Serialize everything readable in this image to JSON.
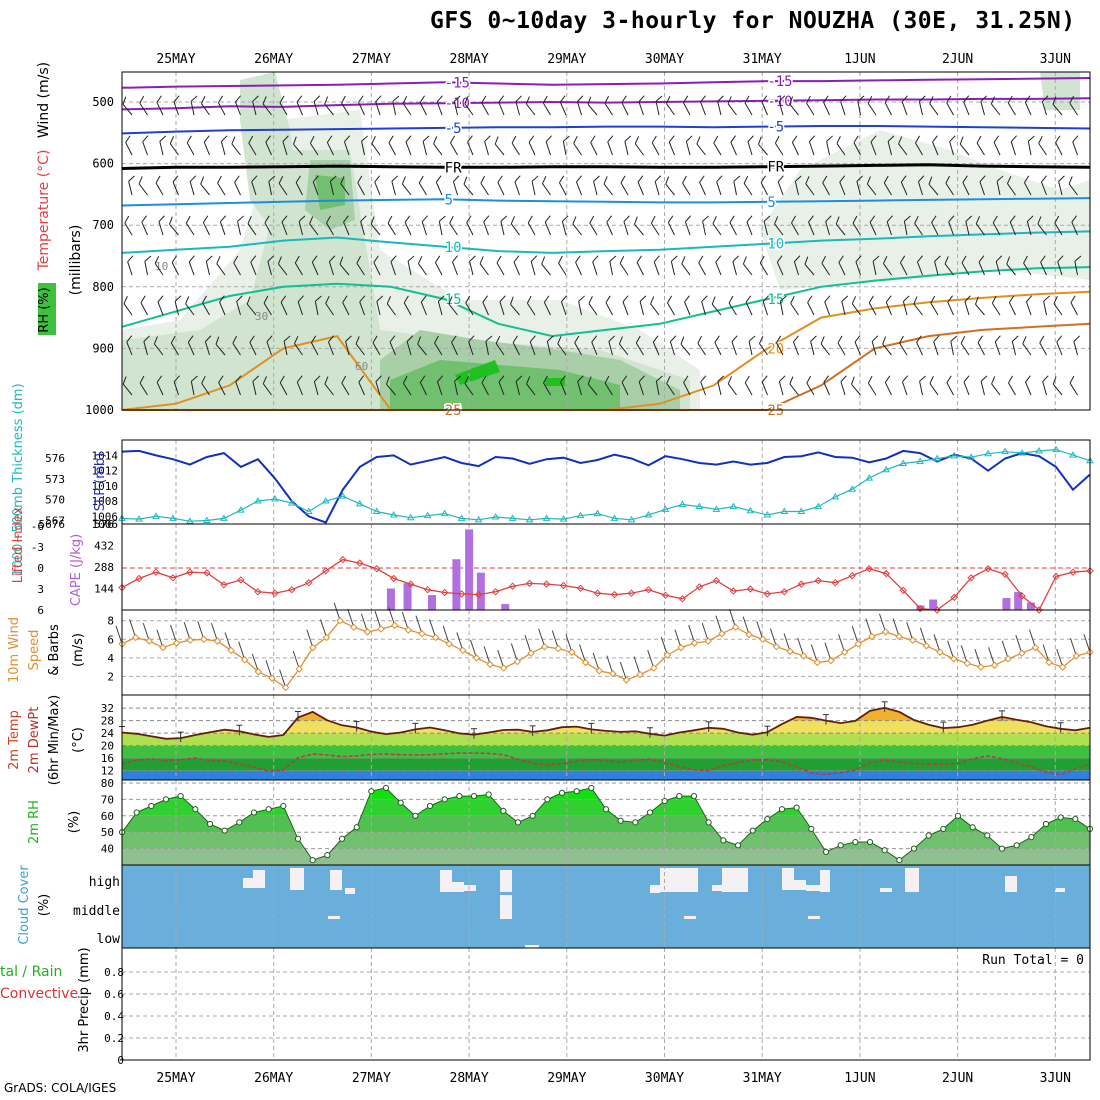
{
  "title": "GFS 0~10day 3-hourly for NOUZHA (30E, 31.25N)",
  "footer": "GrADS: COLA/IGES",
  "dates": [
    "25MAY",
    "26MAY",
    "27MAY",
    "28MAY",
    "29MAY",
    "30MAY",
    "31MAY",
    "1JUN",
    "2JUN",
    "3JUN"
  ],
  "chart_data": [
    {
      "type": "heatmap",
      "panel": "upper-air",
      "ylabel_parts": [
        "RH (%)",
        "Temperature (°C)",
        "Wind (m/s)",
        "(millibars)"
      ],
      "yticks": [
        500,
        600,
        700,
        800,
        900,
        1000
      ],
      "ylim": [
        1000,
        450
      ],
      "ylabel_units": "(millibars)",
      "temperature_contours": [
        {
          "label": "-15",
          "p": [
            477,
            475,
            474,
            473,
            472,
            470,
            468,
            470,
            472,
            471,
            470,
            468,
            466,
            466,
            465,
            464,
            463,
            462,
            461
          ],
          "color": "#8a1fb8"
        },
        {
          "label": "-10",
          "p": [
            512,
            510,
            507,
            508,
            505,
            503,
            502,
            501,
            500,
            501,
            500,
            499,
            498,
            497,
            496,
            496,
            495,
            495,
            494
          ],
          "color": "#8a1fb8"
        },
        {
          "label": "-5",
          "p": [
            551,
            548,
            546,
            545,
            544,
            543,
            542,
            541,
            541,
            540,
            540,
            541,
            540,
            539,
            539,
            540,
            541,
            542,
            543
          ],
          "color": "#2040d0"
        },
        {
          "label": "FR",
          "p": [
            608,
            606,
            606,
            605,
            604,
            605,
            606,
            606,
            605,
            605,
            606,
            606,
            605,
            604,
            603,
            602,
            604,
            605,
            606
          ],
          "color": "#000000"
        },
        {
          "label": "5",
          "p": [
            668,
            666,
            664,
            662,
            660,
            659,
            658,
            660,
            661,
            662,
            663,
            663,
            662,
            661,
            660,
            659,
            658,
            657,
            656
          ],
          "color": "#1c8ee0"
        },
        {
          "label": "10",
          "p": [
            745,
            740,
            735,
            725,
            720,
            728,
            735,
            742,
            745,
            742,
            740,
            735,
            730,
            725,
            722,
            718,
            715,
            712,
            710
          ],
          "color": "#18b8c0"
        },
        {
          "label": "15",
          "p": [
            865,
            840,
            815,
            800,
            795,
            800,
            820,
            860,
            880,
            870,
            860,
            840,
            820,
            800,
            790,
            782,
            775,
            770,
            768
          ],
          "color": "#10c090"
        },
        {
          "label": "20",
          "p": [
            1000,
            990,
            960,
            900,
            880,
            1000,
            1000,
            1000,
            1000,
            1000,
            990,
            960,
            900,
            850,
            835,
            825,
            818,
            812,
            808
          ],
          "color": "#e09020"
        },
        {
          "label": "25",
          "p": [
            1000,
            1000,
            1000,
            1000,
            1000,
            1000,
            1000,
            1000,
            1000,
            1000,
            1000,
            1000,
            1000,
            960,
            900,
            880,
            870,
            865,
            860
          ],
          "color": "#d07020"
        }
      ],
      "rh_labels": [
        "10",
        "30",
        "60"
      ]
    },
    {
      "type": "line",
      "panel": "pressure",
      "ylabel": "SLP (mb)",
      "ylabel2": "1000~500mb Thickness (dm)",
      "yticks_left": [
        567,
        570,
        573,
        576
      ],
      "yticks_right": [
        1006,
        1008,
        1010,
        1012,
        1014
      ],
      "bottom_tick_labels": [
        "5676",
        "1006"
      ],
      "series": [
        {
          "name": "SLP (mb)",
          "axis": "right",
          "color": "#1030c0",
          "values": [
            1014.5,
            1014.6,
            1014,
            1013.5,
            1012.8,
            1013.8,
            1014.3,
            1012.5,
            1013.5,
            1011,
            1008,
            1006,
            1005.2,
            1009.5,
            1012.5,
            1013.8,
            1014,
            1012.8,
            1013.3,
            1013.8,
            1013,
            1012.6,
            1013.8,
            1013.6,
            1012.9,
            1013.5,
            1013.7,
            1013,
            1013.4,
            1014.1,
            1013.6,
            1012.7,
            1013.9,
            1013.5,
            1013,
            1012.8,
            1013.2,
            1012.8,
            1013,
            1013.8,
            1013.9,
            1014.4,
            1013.8,
            1013.7,
            1013.1,
            1013.6,
            1014.6,
            1014.3,
            1013.2,
            1014.1,
            1013.6,
            1012,
            1013.6,
            1014.3,
            1013.9,
            1012.5,
            1009.5,
            1011.5
          ]
        },
        {
          "name": "1000~500mb Thickness (dm)",
          "axis": "left",
          "color": "#20b8c0",
          "values": [
            567.3,
            567.2,
            567.6,
            567.3,
            566.9,
            567.0,
            567.3,
            568.5,
            569.8,
            570.1,
            569.5,
            568.3,
            569.8,
            570.5,
            569.4,
            568.3,
            567.8,
            567.4,
            567.7,
            568.0,
            567.3,
            567.1,
            567.5,
            567.3,
            567.1,
            567.3,
            567.2,
            567.7,
            568.0,
            567.3,
            567.1,
            567.8,
            568.6,
            569.3,
            569.0,
            568.6,
            569.0,
            568.4,
            567.8,
            568.3,
            568.3,
            569.0,
            570.4,
            571.5,
            573.1,
            574.3,
            575.2,
            575.5,
            575.9,
            576.3,
            576.1,
            576.6,
            576.9,
            576.7,
            577.0,
            577.2,
            576.4,
            575.6
          ]
        }
      ]
    },
    {
      "type": "bar",
      "panel": "instability",
      "ylabel": "CAPE (J/kg)",
      "ylabel2": "Lifted Index",
      "yticks_left": [
        6,
        3,
        0,
        -3,
        -6
      ],
      "yticks_right": [
        144,
        288,
        432,
        576
      ],
      "series": [
        {
          "name": "Lifted Index",
          "color": "#e04040",
          "values": [
            2.8,
            1.5,
            0.6,
            1.4,
            0.6,
            0.7,
            2.4,
            1.7,
            3.4,
            3.6,
            3.1,
            2.1,
            0.4,
            -1.2,
            -0.7,
            0.1,
            1.5,
            2.3,
            3.1,
            3.5,
            3.7,
            3.8,
            3.4,
            2.6,
            2.2,
            2.3,
            2.5,
            2.9,
            3.6,
            3.8,
            3.6,
            3.1,
            3.9,
            4.4,
            2.7,
            1.8,
            3.3,
            3.0,
            3.7,
            3.4,
            2.3,
            1.8,
            2.1,
            1.1,
            0.1,
            0.8,
            3.2,
            5.8,
            6,
            4.2,
            1.4,
            0.1,
            0.9,
            4,
            6,
            1.2,
            0.6,
            0.4
          ]
        },
        {
          "name": "CAPE (J/kg)",
          "color": "#b070e0",
          "values": [
            0,
            0,
            0,
            0,
            0,
            0,
            0,
            0,
            0,
            0,
            0,
            0,
            0,
            0,
            0,
            0,
            0,
            0,
            0,
            0,
            0,
            0,
            0,
            0,
            0,
            0,
            0,
            0,
            0,
            0,
            0,
            0,
            0,
            0,
            0,
            0,
            0,
            0,
            0,
            0,
            0,
            0,
            0,
            0,
            0,
            0,
            0,
            0,
            0,
            0,
            0,
            0,
            0,
            0,
            0,
            0,
            0,
            0
          ]
        }
      ],
      "cape_bars": [
        {
          "day": 2.2,
          "v": 144
        },
        {
          "day": 2.37,
          "v": 180
        },
        {
          "day": 2.62,
          "v": 100
        },
        {
          "day": 2.87,
          "v": 340
        },
        {
          "day": 3.0,
          "v": 540
        },
        {
          "day": 3.12,
          "v": 250
        },
        {
          "day": 3.37,
          "v": 40
        },
        {
          "day": 7.62,
          "v": 30
        },
        {
          "day": 7.75,
          "v": 70
        },
        {
          "day": 8.5,
          "v": 80
        },
        {
          "day": 8.62,
          "v": 120
        },
        {
          "day": 8.75,
          "v": 50
        },
        {
          "day": 9.5,
          "v": 40
        },
        {
          "day": 9.62,
          "v": 70
        },
        {
          "day": 9.75,
          "v": 70
        },
        {
          "day": 9.87,
          "v": 40
        },
        {
          "day": 10.1,
          "v": 20
        }
      ]
    },
    {
      "type": "line",
      "panel": "wind10m",
      "ylabel": "10m Wind Speed (m/s) & Barbs",
      "yticks": [
        2,
        4,
        6,
        8
      ],
      "series": [
        {
          "name": "10m Wind Speed",
          "color": "#e09030",
          "values": [
            5.5,
            6.2,
            5.8,
            5.1,
            5.6,
            5.9,
            6.0,
            5.8,
            4.8,
            3.8,
            2.5,
            1.8,
            0.8,
            2.8,
            5.1,
            6.2,
            8.0,
            7.3,
            6.8,
            7.1,
            7.5,
            7.0,
            6.6,
            6.2,
            5.5,
            4.8,
            4.0,
            3.3,
            2.9,
            3.6,
            4.5,
            5.2,
            5.0,
            4.6,
            3.5,
            2.6,
            2.3,
            1.6,
            2.2,
            2.9,
            4.3,
            5.1,
            5.6,
            5.8,
            6.6,
            7.3,
            6.5,
            6.0,
            5.2,
            4.7,
            4.2,
            3.5,
            3.7,
            4.6,
            5.5,
            6.3,
            6.8,
            6.3,
            5.9,
            5.3,
            4.6,
            3.9,
            3.4,
            3.0,
            3.2,
            3.9,
            4.5,
            5.1,
            3.5,
            3.0,
            4.2,
            4.6
          ]
        }
      ]
    },
    {
      "type": "area",
      "panel": "temperature",
      "ylabel": "2m Temp 2m DewPt (6hr Min/Max) (°C)",
      "yticks": [
        12,
        16,
        20,
        24,
        28,
        32
      ],
      "series": [
        {
          "name": "2m Temp",
          "color": "#602010",
          "values": [
            24.2,
            23.8,
            23.0,
            22.2,
            22.4,
            23.4,
            24.3,
            25.1,
            24.6,
            23.6,
            22.8,
            23.4,
            29.0,
            30.8,
            28.1,
            26.5,
            25.8,
            24.5,
            23.7,
            24.2,
            25.2,
            25.8,
            24.9,
            23.9,
            23.5,
            24.2,
            25.0,
            25.1,
            24.4,
            24.9,
            25.9,
            26.1,
            25.2,
            24.7,
            24.4,
            24.6,
            23.8,
            23.2,
            24.2,
            24.9,
            25.7,
            25.4,
            24.2,
            23.5,
            24.3,
            26.9,
            29.2,
            28.9,
            28.0,
            27.2,
            27.9,
            31.1,
            32.1,
            30.8,
            28.2,
            26.7,
            25.6,
            25.9,
            26.7,
            28.0,
            29.2,
            28.3,
            27.5,
            26.2,
            25.4,
            24.9,
            25.7
          ]
        },
        {
          "name": "2m DewPt",
          "color": "#b04040",
          "values": [
            14.2,
            15.3,
            15.8,
            15.1,
            15.5,
            16.0,
            15.2,
            15.1,
            14.1,
            13.2,
            11.8,
            12.2,
            16.1,
            17.3,
            17.0,
            16.5,
            16.7,
            17.2,
            17.3,
            17.1,
            17.0,
            17.1,
            17.4,
            17.6,
            17.6,
            17.5,
            17.1,
            15.6,
            14.4,
            13.8,
            14.3,
            15.0,
            15.6,
            15.1,
            14.8,
            15.2,
            15.7,
            14.6,
            13.2,
            12.3,
            12.0,
            13.6,
            14.6,
            15.3,
            15.5,
            14.8,
            13.3,
            11.2,
            10.8,
            11.3,
            12.2,
            14.6,
            15.3,
            14.8,
            14.3,
            14.1,
            14.0,
            14.3,
            15.8,
            16.7,
            15.8,
            14.5,
            13.2,
            11.5,
            10.8,
            12.5,
            14.2
          ]
        }
      ]
    },
    {
      "type": "area",
      "panel": "humidity",
      "ylabel": "2m RH (%)",
      "yticks": [
        40,
        50,
        60,
        70,
        80
      ],
      "series": [
        {
          "name": "2m RH",
          "color": "#10d010",
          "values": [
            50,
            62,
            66,
            70,
            72,
            64,
            55,
            51,
            56,
            62,
            64,
            66,
            46,
            33,
            36,
            46,
            53,
            75,
            77,
            68,
            60,
            66,
            70,
            72,
            72,
            73,
            63,
            56,
            60,
            70,
            74,
            75,
            77,
            64,
            57,
            56,
            62,
            69,
            72,
            72,
            56,
            45,
            42,
            51,
            58,
            64,
            65,
            52,
            38,
            42,
            44,
            44,
            39,
            33,
            40,
            48,
            52,
            60,
            53,
            48,
            40,
            42,
            47,
            55,
            59,
            58,
            52
          ]
        }
      ]
    },
    {
      "type": "bar",
      "panel": "cloud",
      "ylabel": "Cloud Cover (%)",
      "yticklabels": [
        "high",
        "middle",
        "low"
      ]
    },
    {
      "type": "bar",
      "panel": "precip",
      "ylabel": "3hr Precip (mm)",
      "ylabel2": "Total / Rain Convective",
      "yticks": [
        0,
        0.2,
        0.4,
        0.6,
        0.8
      ],
      "run_total": "Run Total = 0",
      "values": []
    }
  ]
}
